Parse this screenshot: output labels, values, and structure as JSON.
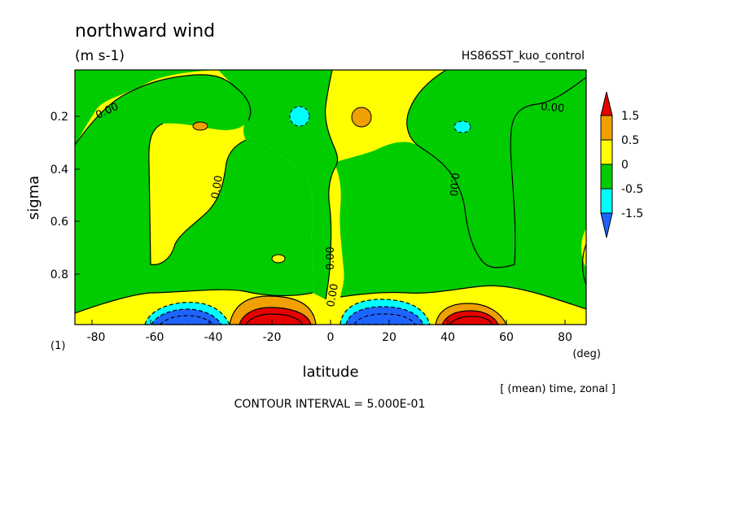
{
  "chart_data": {
    "type": "heatmap",
    "title": "northward wind",
    "units": "(m s-1)",
    "dataset": "HS86SST_kuo_control",
    "xlabel": "latitude",
    "xunit": "(deg)",
    "ylabel": "sigma",
    "ylabel_extra": "(1)",
    "xlim": [
      -87.2,
      87.2
    ],
    "ylim": [
      0.02,
      0.99
    ],
    "y_inverted": true,
    "x_ticks": [
      "-80",
      "-60",
      "-40",
      "-20",
      "0",
      "20",
      "40",
      "60",
      "80"
    ],
    "y_ticks": [
      "0.2",
      "0.4",
      "0.6",
      "0.8"
    ],
    "legend": {
      "placement": "right",
      "levels": [
        "1.5",
        "0.5",
        "0",
        "-0.5",
        "-1.5"
      ],
      "colors": [
        "#e60000",
        "#f0a000",
        "#ffff00",
        "#00cc00",
        "#00ffff",
        "#1e64ff"
      ]
    },
    "contour_labels": [
      "0.00",
      "0.00",
      "0.00",
      "0.00",
      "0.00",
      "0.00",
      "0.00"
    ],
    "averaging_note": "[ (mean) time, zonal ]",
    "contour_interval": "CONTOUR INTERVAL = 5.000E-01"
  }
}
